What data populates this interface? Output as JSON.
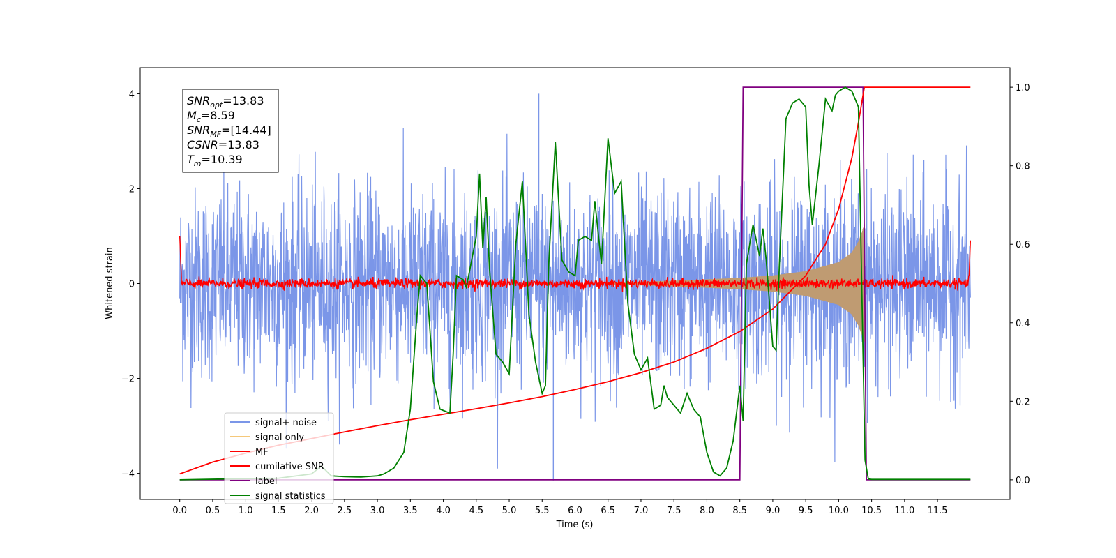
{
  "chart_data": {
    "type": "line",
    "xlabel": "Time (s)",
    "ylabel": "Whitened strain",
    "xlim": [
      -0.6,
      12.6
    ],
    "ylim": [
      -4.55,
      4.55
    ],
    "y2lim": [
      -0.05,
      1.05
    ],
    "x_ticks": [
      "0.0",
      "0.5",
      "1.0",
      "1.5",
      "2.0",
      "2.5",
      "3.0",
      "3.5",
      "4.0",
      "4.5",
      "5.0",
      "5.5",
      "6.0",
      "6.5",
      "7.0",
      "7.5",
      "8.0",
      "8.5",
      "9.0",
      "9.5",
      "10.0",
      "10.5",
      "11.0",
      "11.5"
    ],
    "y_ticks": [
      "−4",
      "−2",
      "0",
      "2",
      "4"
    ],
    "y2_ticks": [
      "0.0",
      "0.2",
      "0.4",
      "0.6",
      "0.8",
      "1.0"
    ],
    "grid": false,
    "legend_position": "lower-left",
    "annotation": {
      "lines": [
        {
          "base": "SNR",
          "sub": "opt",
          "value": "=13.83"
        },
        {
          "base": "M",
          "sub": "c",
          "value": "=8.59"
        },
        {
          "base": "SNR",
          "sub": "MF",
          "value": "=[14.44]"
        },
        {
          "base": "CSNR",
          "sub": "",
          "value": "=13.83"
        },
        {
          "base": "T",
          "sub": "m",
          "value": "=10.39"
        }
      ]
    },
    "series": [
      {
        "name": "signal+ noise",
        "axis": "left",
        "color": "#7b96e8",
        "kind": "noise-band",
        "x_range": [
          0.0,
          12.0
        ],
        "typical_amplitude": 1.0,
        "peak_values": [
          4.0,
          -4.15
        ]
      },
      {
        "name": "signal only",
        "axis": "left",
        "color": "#f5c87a",
        "kind": "chirp",
        "x_range": [
          6.5,
          10.39
        ],
        "envelope": {
          "x": [
            6.5,
            7.5,
            8.5,
            9.0,
            9.5,
            10.0,
            10.2,
            10.3,
            10.36,
            10.39
          ],
          "amplitude": [
            0.02,
            0.06,
            0.12,
            0.17,
            0.26,
            0.45,
            0.65,
            0.88,
            1.1,
            1.25
          ]
        }
      },
      {
        "name": "MF",
        "axis": "left",
        "color": "#ff0000",
        "kind": "noise-band",
        "x_range": [
          0.0,
          12.0
        ],
        "typical_amplitude": 0.1,
        "edge_values": [
          1.0,
          0.9
        ]
      },
      {
        "name": "cumilative SNR",
        "axis": "right",
        "color": "#ff0000",
        "x": [
          0.0,
          0.5,
          1.0,
          1.5,
          2.0,
          2.5,
          3.0,
          3.5,
          4.0,
          4.5,
          5.0,
          5.5,
          6.0,
          6.5,
          7.0,
          7.5,
          8.0,
          8.5,
          9.0,
          9.5,
          9.8,
          10.0,
          10.2,
          10.3,
          10.39,
          10.5,
          11.0,
          11.5,
          12.0
        ],
        "values": [
          0.015,
          0.045,
          0.068,
          0.088,
          0.105,
          0.122,
          0.138,
          0.153,
          0.167,
          0.181,
          0.196,
          0.212,
          0.23,
          0.25,
          0.273,
          0.3,
          0.335,
          0.378,
          0.435,
          0.52,
          0.6,
          0.69,
          0.82,
          0.91,
          1.0,
          1.0,
          1.0,
          1.0,
          1.0
        ]
      },
      {
        "name": "label",
        "axis": "right",
        "color": "#800080",
        "x": [
          0.0,
          8.5,
          8.55,
          10.37,
          10.42,
          12.0
        ],
        "values": [
          0.0,
          0.0,
          1.0,
          1.0,
          0.0,
          0.0
        ]
      },
      {
        "name": "signal statistics",
        "axis": "right",
        "color": "#008000",
        "x": [
          0.0,
          1.0,
          1.5,
          2.0,
          2.15,
          2.3,
          2.5,
          2.75,
          3.0,
          3.1,
          3.25,
          3.4,
          3.5,
          3.6,
          3.65,
          3.75,
          3.85,
          3.95,
          4.1,
          4.15,
          4.2,
          4.3,
          4.35,
          4.5,
          4.55,
          4.6,
          4.65,
          4.7,
          4.8,
          4.9,
          5.0,
          5.1,
          5.2,
          5.3,
          5.4,
          5.5,
          5.55,
          5.6,
          5.7,
          5.8,
          5.9,
          6.0,
          6.05,
          6.15,
          6.25,
          6.3,
          6.4,
          6.5,
          6.6,
          6.7,
          6.8,
          6.9,
          7.0,
          7.1,
          7.2,
          7.3,
          7.35,
          7.4,
          7.5,
          7.6,
          7.7,
          7.8,
          7.9,
          8.0,
          8.1,
          8.2,
          8.3,
          8.4,
          8.5,
          8.55,
          8.6,
          8.7,
          8.8,
          8.85,
          8.9,
          9.0,
          9.05,
          9.1,
          9.2,
          9.3,
          9.4,
          9.5,
          9.55,
          9.6,
          9.7,
          9.8,
          9.9,
          9.95,
          10.0,
          10.1,
          10.2,
          10.3,
          10.35,
          10.4,
          10.45,
          10.5,
          11.0,
          12.0
        ],
        "values": [
          0.0,
          0.003,
          0.004,
          0.015,
          0.035,
          0.01,
          0.008,
          0.007,
          0.01,
          0.015,
          0.03,
          0.07,
          0.18,
          0.42,
          0.52,
          0.5,
          0.25,
          0.18,
          0.17,
          0.32,
          0.52,
          0.51,
          0.49,
          0.62,
          0.78,
          0.59,
          0.72,
          0.54,
          0.32,
          0.3,
          0.27,
          0.6,
          0.76,
          0.42,
          0.3,
          0.22,
          0.24,
          0.55,
          0.86,
          0.56,
          0.53,
          0.52,
          0.61,
          0.62,
          0.61,
          0.71,
          0.55,
          0.87,
          0.73,
          0.76,
          0.45,
          0.32,
          0.28,
          0.31,
          0.18,
          0.19,
          0.24,
          0.21,
          0.19,
          0.17,
          0.22,
          0.18,
          0.16,
          0.07,
          0.02,
          0.01,
          0.03,
          0.1,
          0.24,
          0.15,
          0.55,
          0.65,
          0.57,
          0.64,
          0.56,
          0.34,
          0.33,
          0.55,
          0.92,
          0.96,
          0.97,
          0.95,
          0.75,
          0.65,
          0.8,
          0.97,
          0.94,
          0.98,
          0.99,
          1.0,
          0.99,
          0.95,
          0.5,
          0.05,
          0.002,
          0.001,
          0.001,
          0.001
        ]
      }
    ]
  }
}
